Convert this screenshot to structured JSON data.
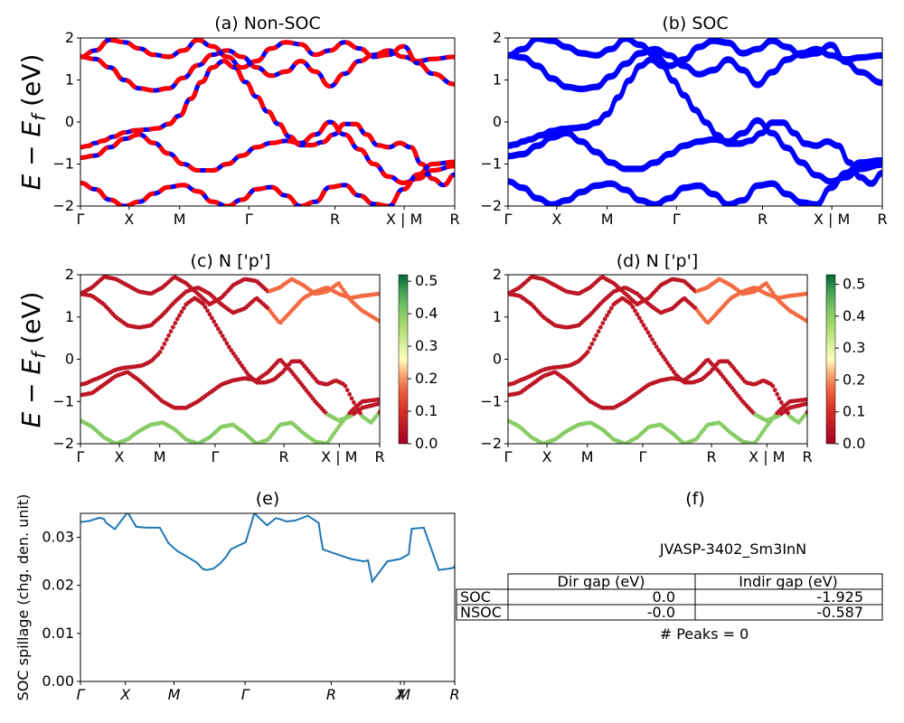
{
  "chart_data": [
    {
      "panel": "a",
      "type": "line",
      "title": "(a) Non-SOC",
      "ylabel": "E − E_f (eV)",
      "ylim": [
        -2,
        2
      ],
      "yticks": [
        "−2",
        "−1",
        "0",
        "1",
        "2"
      ],
      "xticks": [
        "Γ",
        "X",
        "M",
        "Γ",
        "R",
        "X | M",
        "R"
      ],
      "series": [
        {
          "x": [
            0,
            0.1,
            0.2,
            0.3,
            0.45,
            0.6,
            0.75,
            0.9,
            1.05,
            1.2,
            1.35,
            1.5,
            1.65,
            1.8,
            1.95,
            2.1,
            2.25,
            2.4,
            2.55,
            2.7,
            2.85,
            3.0,
            3.15,
            3.3,
            3.45,
            3.6,
            3.75,
            3.9,
            4.05,
            4.2,
            4.35,
            4.5,
            4.65,
            4.8,
            4.95,
            5.1
          ],
          "y": [
            -0.6,
            -0.57,
            -0.5,
            -0.45,
            -0.35,
            -0.25,
            -0.2,
            -0.18,
            -0.15,
            -0.05,
            0.15,
            0.55,
            0.95,
            1.3,
            1.45,
            1.3,
            0.95,
            0.6,
            0.25,
            -0.05,
            -0.35,
            -0.55,
            -0.55,
            -0.48,
            -0.3,
            -0.05,
            -0.05,
            -0.3,
            -0.55,
            -0.6,
            -0.5,
            -0.6,
            -1.0,
            -1.35,
            -1.5,
            -1.25
          ]
        },
        {
          "x": [
            0,
            0.2,
            0.4,
            0.6,
            0.8,
            1.0,
            1.2,
            1.4,
            1.6,
            1.8,
            2.0,
            2.2,
            2.4,
            2.6,
            2.8,
            3.0,
            3.2,
            3.4,
            3.6,
            3.8,
            4.0,
            4.2,
            4.4,
            4.6,
            4.8,
            5.1
          ],
          "y": [
            -0.85,
            -0.8,
            -0.6,
            -0.4,
            -0.3,
            -0.5,
            -0.75,
            -1.0,
            -1.15,
            -1.15,
            -1.0,
            -0.8,
            -0.6,
            -0.5,
            -0.45,
            -0.5,
            -0.3,
            0.0,
            -0.3,
            -0.65,
            -1.0,
            -1.3,
            -1.45,
            -1.35,
            -1.15,
            -1.05
          ]
        },
        {
          "x": [
            0,
            0.2,
            0.4,
            0.6,
            0.8,
            1.0,
            1.2,
            1.4,
            1.6,
            1.8,
            2.0,
            2.2,
            2.4,
            2.6,
            2.8,
            3.0,
            3.2,
            3.4,
            3.6,
            3.8,
            4.0,
            4.2,
            4.4,
            4.6,
            4.8,
            5.1
          ],
          "y": [
            1.55,
            1.5,
            1.3,
            1.0,
            0.8,
            0.75,
            0.8,
            1.05,
            1.35,
            1.6,
            1.7,
            1.55,
            1.3,
            1.1,
            1.2,
            1.45,
            1.2,
            0.85,
            1.15,
            1.45,
            1.6,
            1.7,
            1.55,
            1.45,
            1.5,
            1.55
          ]
        },
        {
          "x": [
            0,
            0.2,
            0.4,
            0.6,
            0.8,
            1.0,
            1.2,
            1.4,
            1.6,
            1.8,
            2.0,
            2.2,
            2.4,
            2.6,
            2.8,
            3.0,
            3.2,
            3.4,
            3.6,
            3.8,
            4.0,
            4.2,
            4.4,
            4.6,
            4.8,
            5.1
          ],
          "y": [
            1.55,
            1.7,
            1.95,
            1.9,
            1.75,
            1.6,
            1.55,
            1.7,
            1.95,
            1.8,
            1.55,
            1.3,
            1.45,
            1.75,
            1.9,
            1.85,
            1.6,
            1.7,
            1.9,
            1.75,
            1.55,
            1.6,
            1.8,
            1.4,
            1.15,
            0.9
          ]
        },
        {
          "x": [
            0,
            0.2,
            0.4,
            0.6,
            0.8,
            1.0,
            1.2,
            1.4,
            1.6,
            1.8,
            2.0,
            2.2,
            2.4,
            2.6,
            2.8,
            3.0,
            3.2,
            3.4,
            3.6,
            3.8,
            4.0,
            4.2,
            4.4,
            4.6,
            4.8,
            5.1
          ],
          "y": [
            -1.45,
            -1.6,
            -1.85,
            -2.0,
            -1.9,
            -1.7,
            -1.55,
            -1.5,
            -1.65,
            -1.9,
            -2.0,
            -1.85,
            -1.6,
            -1.55,
            -1.75,
            -2.0,
            -1.9,
            -1.55,
            -1.5,
            -1.75,
            -1.95,
            -2.0,
            -1.6,
            -1.25,
            -1.0,
            -0.95
          ]
        }
      ]
    },
    {
      "panel": "b",
      "type": "line",
      "title": "(b) SOC",
      "ylim": [
        -2,
        2
      ],
      "yticks": [
        "−2",
        "−1",
        "0",
        "1",
        "2"
      ],
      "xticks": [
        "Γ",
        "X",
        "M",
        "Γ",
        "R",
        "X | M",
        "R"
      ]
    },
    {
      "panel": "c",
      "type": "scatter",
      "title": "(c)  N ['p']",
      "ylabel": "E − E_f (eV)",
      "ylim": [
        -2,
        2
      ],
      "yticks": [
        "−2",
        "−1",
        "0",
        "1",
        "2"
      ],
      "xticks": [
        "Γ",
        "X",
        "M",
        "Γ",
        "R",
        "X | M",
        "R"
      ],
      "colorbar": {
        "ticks": [
          "0.0",
          "0.1",
          "0.2",
          "0.3",
          "0.4",
          "0.5"
        ],
        "range": [
          0,
          0.52
        ],
        "colormap": "RdYlGn"
      }
    },
    {
      "panel": "d",
      "type": "scatter",
      "title": "(d) N ['p']",
      "ylim": [
        -2,
        2
      ],
      "yticks": [
        "−2",
        "−1",
        "0",
        "1",
        "2"
      ],
      "xticks": [
        "Γ",
        "X",
        "M",
        "Γ",
        "R",
        "X | M",
        "R"
      ],
      "colorbar": {
        "ticks": [
          "0.0",
          "0.1",
          "0.2",
          "0.3",
          "0.4",
          "0.5"
        ],
        "range": [
          0,
          0.53
        ],
        "colormap": "RdYlGn"
      }
    },
    {
      "panel": "e",
      "type": "line",
      "title": "(e)",
      "ylabel": "SOC spillage (chg. den. unit)",
      "ylim": [
        0,
        0.035
      ],
      "yticks": [
        "0.00",
        "0.01",
        "0.02",
        "0.03"
      ],
      "xticks": [
        "Γ",
        "X",
        "M",
        "Γ",
        "R",
        "X",
        "M",
        "R"
      ],
      "series": [
        {
          "x": [
            0,
            0.2,
            0.45,
            0.55,
            0.6,
            0.8,
            1.1,
            1.3,
            1.55,
            1.85,
            2.05,
            2.25,
            2.7,
            2.85,
            2.95,
            3.1,
            3.25,
            3.4,
            3.5,
            3.85,
            4.05,
            4.35,
            4.55,
            4.65,
            4.8,
            5.0,
            5.3,
            5.55,
            5.6,
            5.65,
            6.3,
            6.6,
            6.7,
            6.8,
            7.15,
            7.45,
            7.65,
            7.68,
            7.72,
            8.0,
            8.35,
            8.6,
            8.7,
            8.72
          ],
          "y": [
            0.0332,
            0.0334,
            0.0341,
            0.0338,
            0.033,
            0.0317,
            0.0352,
            0.0322,
            0.032,
            0.032,
            0.0288,
            0.0272,
            0.0248,
            0.0234,
            0.0232,
            0.0235,
            0.0245,
            0.026,
            0.0275,
            0.029,
            0.035,
            0.0325,
            0.034,
            0.0338,
            0.0333,
            0.0335,
            0.0345,
            0.033,
            0.03,
            0.0275,
            0.0255,
            0.025,
            0.0252,
            0.0208,
            0.025,
            0.0255,
            0.0265,
            0.029,
            0.0318,
            0.032,
            0.0232,
            0.0235,
            0.0237,
            0.0242
          ]
        }
      ]
    }
  ],
  "panel_f": {
    "title": "(f)",
    "header": "JVASP-3402_Sm3InN",
    "table": {
      "columns": [
        "Dir gap (eV)",
        "Indir gap (eV)"
      ],
      "rows": [
        {
          "label": "SOC",
          "dir": "0.0",
          "indir": "-1.925"
        },
        {
          "label": "NSOC",
          "dir": "-0.0",
          "indir": "-0.587"
        }
      ]
    },
    "footer": "# Peaks = 0"
  },
  "colors": {
    "non_soc_line": "#ff0000",
    "non_soc_dash": "#0000ff",
    "soc_line": "#0000ff",
    "spillage_line": "#1f77b4"
  }
}
